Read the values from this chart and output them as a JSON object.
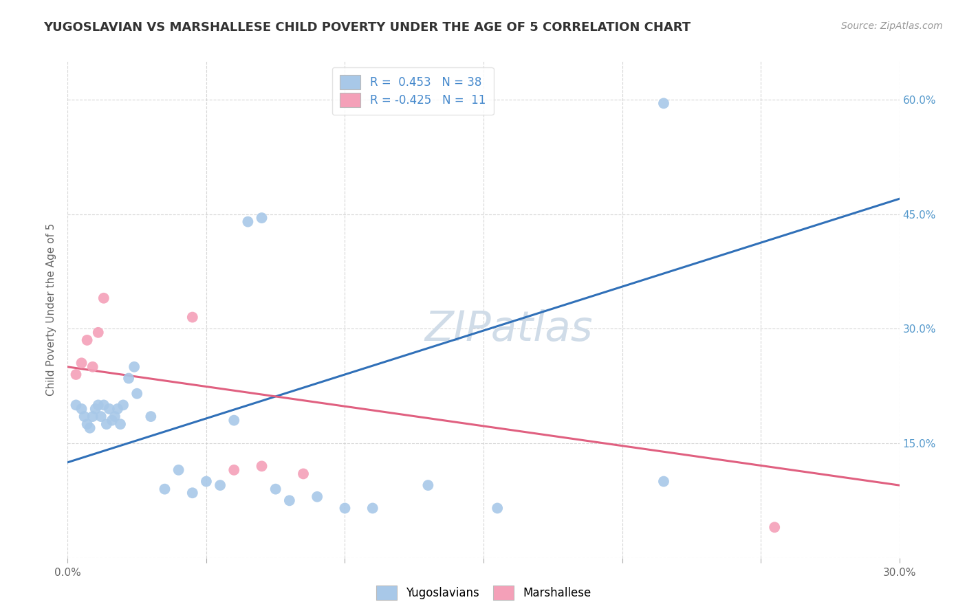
{
  "title": "YUGOSLAVIAN VS MARSHALLESE CHILD POVERTY UNDER THE AGE OF 5 CORRELATION CHART",
  "source": "Source: ZipAtlas.com",
  "ylabel": "Child Poverty Under the Age of 5",
  "xlim": [
    0.0,
    0.3
  ],
  "ylim": [
    0.0,
    0.65
  ],
  "blue_R": 0.453,
  "blue_N": 38,
  "pink_R": -0.425,
  "pink_N": 11,
  "blue_color": "#A8C8E8",
  "pink_color": "#F4A0B8",
  "blue_line_color": "#3070B8",
  "pink_line_color": "#E06080",
  "blue_scatter_x": [
    0.003,
    0.005,
    0.006,
    0.007,
    0.008,
    0.009,
    0.01,
    0.011,
    0.012,
    0.013,
    0.014,
    0.015,
    0.016,
    0.017,
    0.018,
    0.019,
    0.02,
    0.022,
    0.024,
    0.025,
    0.03,
    0.035,
    0.04,
    0.045,
    0.05,
    0.055,
    0.06,
    0.065,
    0.07,
    0.075,
    0.08,
    0.09,
    0.1,
    0.11,
    0.13,
    0.155,
    0.215,
    0.215
  ],
  "blue_scatter_y": [
    0.2,
    0.195,
    0.185,
    0.175,
    0.17,
    0.185,
    0.195,
    0.2,
    0.185,
    0.2,
    0.175,
    0.195,
    0.18,
    0.185,
    0.195,
    0.175,
    0.2,
    0.235,
    0.25,
    0.215,
    0.185,
    0.09,
    0.115,
    0.085,
    0.1,
    0.095,
    0.18,
    0.44,
    0.445,
    0.09,
    0.075,
    0.08,
    0.065,
    0.065,
    0.095,
    0.065,
    0.1,
    0.595
  ],
  "pink_scatter_x": [
    0.003,
    0.005,
    0.007,
    0.009,
    0.011,
    0.013,
    0.045,
    0.06,
    0.07,
    0.085,
    0.255
  ],
  "pink_scatter_y": [
    0.24,
    0.255,
    0.285,
    0.25,
    0.295,
    0.34,
    0.315,
    0.115,
    0.12,
    0.11,
    0.04
  ],
  "blue_line_x0": 0.0,
  "blue_line_y0": 0.125,
  "blue_line_x1": 0.3,
  "blue_line_y1": 0.47,
  "pink_line_x0": 0.0,
  "pink_line_y0": 0.25,
  "pink_line_x1": 0.3,
  "pink_line_y1": 0.095,
  "watermark_text": "ZIPatlas",
  "legend_blue_label": "Yugoslavians",
  "legend_pink_label": "Marshallese",
  "background_color": "#FFFFFF",
  "grid_color": "#CCCCCC",
  "title_fontsize": 13,
  "source_fontsize": 10,
  "axis_label_fontsize": 11,
  "tick_fontsize": 11,
  "legend_fontsize": 12
}
